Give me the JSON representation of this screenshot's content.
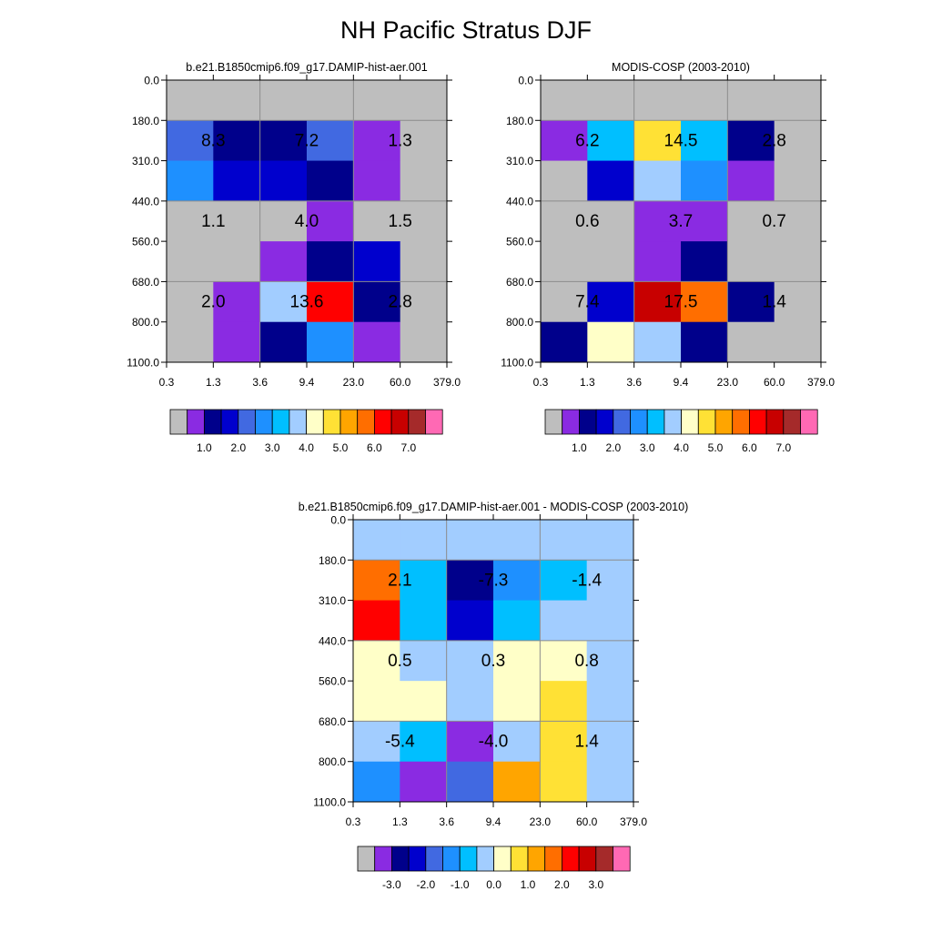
{
  "title": "NH Pacific Stratus DJF",
  "colors": {
    "missing": "#bebebe",
    "grid_line": "#8c8c8c"
  },
  "chart_data": [
    {
      "type": "heatmap",
      "title": "b.e21.B1850cmip6.f09_g17.DAMIP-hist-aer.001",
      "x_tick_labels": [
        "0.3",
        "1.3",
        "3.6",
        "9.4",
        "23.0",
        "60.0",
        "379.0"
      ],
      "y_tick_labels": [
        "0.0",
        "180.0",
        "310.0",
        "440.0",
        "560.0",
        "680.0",
        "800.0",
        "1100.0"
      ],
      "cells": [
        [
          0,
          0,
          0,
          0,
          0,
          0
        ],
        [
          4,
          2,
          2,
          4,
          1,
          0
        ],
        [
          5,
          3,
          3,
          2,
          1,
          0
        ],
        [
          0,
          0,
          0,
          1,
          0,
          0
        ],
        [
          0,
          0,
          1,
          2,
          3,
          0
        ],
        [
          0,
          1,
          7,
          12,
          2,
          0
        ],
        [
          0,
          1,
          2,
          5,
          1,
          0
        ]
      ],
      "annotations": [
        [
          "8.3",
          "7.2",
          "1.3"
        ],
        [
          "1.1",
          "4.0",
          "1.5"
        ],
        [
          "2.0",
          "13.6",
          "2.8"
        ]
      ],
      "colorbar": {
        "colors": [
          "#bebebe",
          "#8a2be2",
          "#00008b",
          "#0000cd",
          "#4169e1",
          "#1e90ff",
          "#00bfff",
          "#a2cdff",
          "#ffffc8",
          "#ffe135",
          "#ffa500",
          "#ff6e00",
          "#ff0000",
          "#c80000",
          "#a52a2a",
          "#ff69b4"
        ],
        "labels": [
          "1.0",
          "2.0",
          "3.0",
          "4.0",
          "5.0",
          "6.0",
          "7.0"
        ]
      }
    },
    {
      "type": "heatmap",
      "title": "MODIS-COSP (2003-2010)",
      "x_tick_labels": [
        "0.3",
        "1.3",
        "3.6",
        "9.4",
        "23.0",
        "60.0",
        "379.0"
      ],
      "y_tick_labels": [
        "0.0",
        "180.0",
        "310.0",
        "440.0",
        "560.0",
        "680.0",
        "800.0",
        "1100.0"
      ],
      "cells": [
        [
          0,
          0,
          0,
          0,
          0,
          0
        ],
        [
          1,
          6,
          9,
          6,
          2,
          0
        ],
        [
          0,
          3,
          7,
          5,
          1,
          0
        ],
        [
          0,
          0,
          1,
          1,
          0,
          0
        ],
        [
          0,
          0,
          1,
          2,
          0,
          0
        ],
        [
          0,
          3,
          13,
          11,
          2,
          0
        ],
        [
          2,
          8,
          7,
          2,
          0,
          0
        ]
      ],
      "annotations": [
        [
          "6.2",
          "14.5",
          "2.8"
        ],
        [
          "0.6",
          "3.7",
          "0.7"
        ],
        [
          "7.4",
          "17.5",
          "1.4"
        ]
      ],
      "colorbar": {
        "colors": [
          "#bebebe",
          "#8a2be2",
          "#00008b",
          "#0000cd",
          "#4169e1",
          "#1e90ff",
          "#00bfff",
          "#a2cdff",
          "#ffffc8",
          "#ffe135",
          "#ffa500",
          "#ff6e00",
          "#ff0000",
          "#c80000",
          "#a52a2a",
          "#ff69b4"
        ],
        "labels": [
          "1.0",
          "2.0",
          "3.0",
          "4.0",
          "5.0",
          "6.0",
          "7.0"
        ]
      }
    },
    {
      "type": "heatmap",
      "title": "b.e21.B1850cmip6.f09_g17.DAMIP-hist-aer.001 - MODIS-COSP (2003-2010)",
      "x_tick_labels": [
        "0.3",
        "1.3",
        "3.6",
        "9.4",
        "23.0",
        "60.0",
        "379.0"
      ],
      "y_tick_labels": [
        "0.0",
        "180.0",
        "310.0",
        "440.0",
        "560.0",
        "680.0",
        "800.0",
        "1100.0"
      ],
      "cells": [
        [
          7,
          7,
          7,
          7,
          7,
          7
        ],
        [
          11,
          6,
          2,
          5,
          6,
          7
        ],
        [
          12,
          6,
          3,
          6,
          7,
          7
        ],
        [
          8,
          7,
          7,
          8,
          8,
          7
        ],
        [
          8,
          8,
          7,
          8,
          9,
          7
        ],
        [
          7,
          6,
          1,
          7,
          9,
          7
        ],
        [
          5,
          1,
          4,
          10,
          9,
          7
        ]
      ],
      "annotations": [
        [
          "2.1",
          "-7.3",
          "-1.4"
        ],
        [
          "0.5",
          "0.3",
          "0.8"
        ],
        [
          "-5.4",
          "-4.0",
          "1.4"
        ]
      ],
      "colorbar": {
        "colors": [
          "#bebebe",
          "#8a2be2",
          "#00008b",
          "#0000cd",
          "#4169e1",
          "#1e90ff",
          "#00bfff",
          "#a2cdff",
          "#ffffc8",
          "#ffe135",
          "#ffa500",
          "#ff6e00",
          "#ff0000",
          "#c80000",
          "#a52a2a",
          "#ff69b4"
        ],
        "labels": [
          "-3.0",
          "-2.0",
          "-1.0",
          "0.0",
          "1.0",
          "2.0",
          "3.0"
        ]
      }
    }
  ]
}
